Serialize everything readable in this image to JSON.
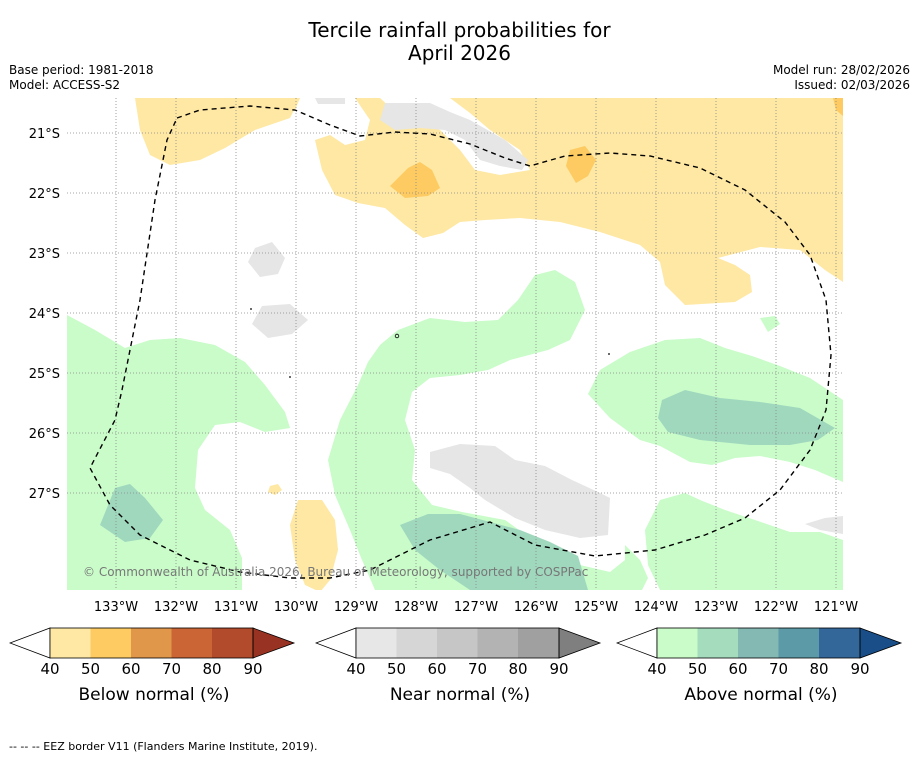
{
  "title": {
    "line1": "Tercile rainfall probabilities for",
    "line2": "April 2026"
  },
  "meta": {
    "base_period": "Base period: 1981-2018",
    "model": "Model: ACCESS-S2",
    "model_run": "Model run: 28/02/2026",
    "issued": "Issued: 02/03/2026"
  },
  "map": {
    "lat_labels": [
      "21°S",
      "22°S",
      "23°S",
      "24°S",
      "25°S",
      "26°S",
      "27°S"
    ],
    "lon_labels": [
      "133°W",
      "132°W",
      "131°W",
      "130°W",
      "129°W",
      "128°W",
      "127°W",
      "126°W",
      "125°W",
      "124°W",
      "123°W",
      "122°W",
      "121°W"
    ],
    "copyright": "© Commonwealth of Australia 2026, Bureau of Meteorology, supported by COSPPac",
    "colors": {
      "below_40": "#fee8a4",
      "below_50": "#fdcb62",
      "near_40": "#e6e6e6",
      "above_40": "#c9fcc9",
      "above_50": "#a0d8be",
      "above_60": "#84b8b3",
      "eez_border": "#000000"
    }
  },
  "colorbars": {
    "ticks": [
      "40",
      "50",
      "60",
      "70",
      "80",
      "90"
    ],
    "below": {
      "label": "Below normal (%)",
      "colors": [
        "#fee8a4",
        "#fdcb62",
        "#e0974a",
        "#cc6535",
        "#b24b2c",
        "#983222"
      ]
    },
    "near": {
      "label": "Near normal (%)",
      "colors": [
        "#e7e7e7",
        "#d6d6d6",
        "#c6c6c6",
        "#b3b3b3",
        "#a0a0a0",
        "#7f7f7f"
      ]
    },
    "above": {
      "label": "Above normal (%)",
      "colors": [
        "#c9fcc9",
        "#a5dcbd",
        "#84b8b3",
        "#5b9aa6",
        "#336699",
        "#1a4e89"
      ]
    }
  },
  "footer": {
    "legend": "-- -- -- EEZ border V11 (Flanders Marine Institute, 2019)."
  }
}
